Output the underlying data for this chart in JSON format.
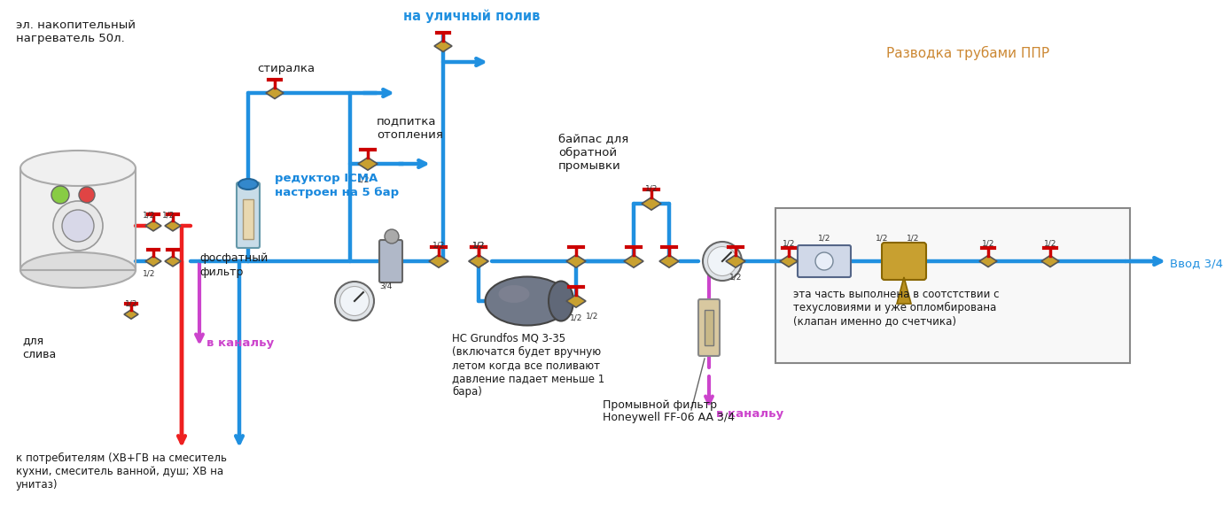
{
  "bg_color": "#ffffff",
  "pipe_blue": "#2090e0",
  "pipe_red": "#ee2020",
  "pipe_pink": "#cc44cc",
  "text_black": "#1a1a1a",
  "text_blue": "#1e90ff",
  "text_orange": "#cc8833",
  "labels": {
    "heater": "эл. накопительный\nнагреватель 50л.",
    "washer": "стиралка",
    "outdoor": "на уличный полив",
    "heating": "подпитка\nотопления",
    "reducer": "редуктор ICMA\nнастроен на 5 бар",
    "phosphate": "фосфатный\nфильтр",
    "drain1": "в канальу",
    "drain2": "в канальу",
    "consumers": "к потребителям (ХВ+ГВ на смеситель\nкухни, смеситель ванной, душ; ХВ на\nунитаз)",
    "pump": "НС Grundfos MQ 3-35\n(включатся будет вручную\nлетом когда все поливают\nдавление падает меньше 1\nбара)",
    "bypass": "байпас для\nобратной\nпромывки",
    "sealed": "эта часть выполнена в соотстствии с\nтехусловиями и уже опломбирована\n(клапан именно до счетчика)",
    "filter2": "Промывной фильтр\nHoneywell FF-06 AA 3/4",
    "ppr": "Разводка трубами ППР",
    "inlet": "Ввод 3/4",
    "drain_label": "для\nслива"
  }
}
